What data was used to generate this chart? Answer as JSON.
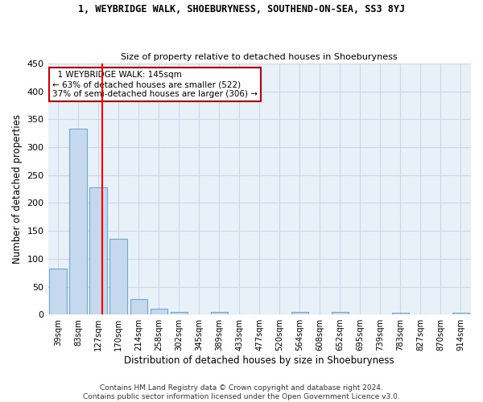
{
  "title1": "1, WEYBRIDGE WALK, SHOEBURYNESS, SOUTHEND-ON-SEA, SS3 8YJ",
  "title2": "Size of property relative to detached houses in Shoeburyness",
  "xlabel": "Distribution of detached houses by size in Shoeburyness",
  "ylabel": "Number of detached properties",
  "footnote": "Contains HM Land Registry data © Crown copyright and database right 2024.\nContains public sector information licensed under the Open Government Licence v3.0.",
  "categories": [
    "39sqm",
    "83sqm",
    "127sqm",
    "170sqm",
    "214sqm",
    "258sqm",
    "302sqm",
    "345sqm",
    "389sqm",
    "433sqm",
    "477sqm",
    "520sqm",
    "564sqm",
    "608sqm",
    "652sqm",
    "695sqm",
    "739sqm",
    "783sqm",
    "827sqm",
    "870sqm",
    "914sqm"
  ],
  "values": [
    83,
    333,
    228,
    136,
    28,
    10,
    5,
    0,
    5,
    0,
    0,
    0,
    4,
    0,
    4,
    0,
    0,
    3,
    0,
    0,
    3
  ],
  "bar_color": "#c5d8ed",
  "bar_edge_color": "#6fa8d0",
  "grid_color": "#c8d8e8",
  "background_color": "#e8f0f8",
  "red_line_x": 2.18,
  "annotation_box_text": "  1 WEYBRIDGE WALK: 145sqm  \n← 63% of detached houses are smaller (522)\n37% of semi-detached houses are larger (306) →",
  "annotation_box_color": "#ffffff",
  "annotation_box_edge_color": "#cc0000",
  "ylim": [
    0,
    450
  ],
  "yticks": [
    0,
    50,
    100,
    150,
    200,
    250,
    300,
    350,
    400,
    450
  ],
  "title1_fontsize": 8.5,
  "title2_fontsize": 8.0,
  "footnote_fontsize": 6.5
}
